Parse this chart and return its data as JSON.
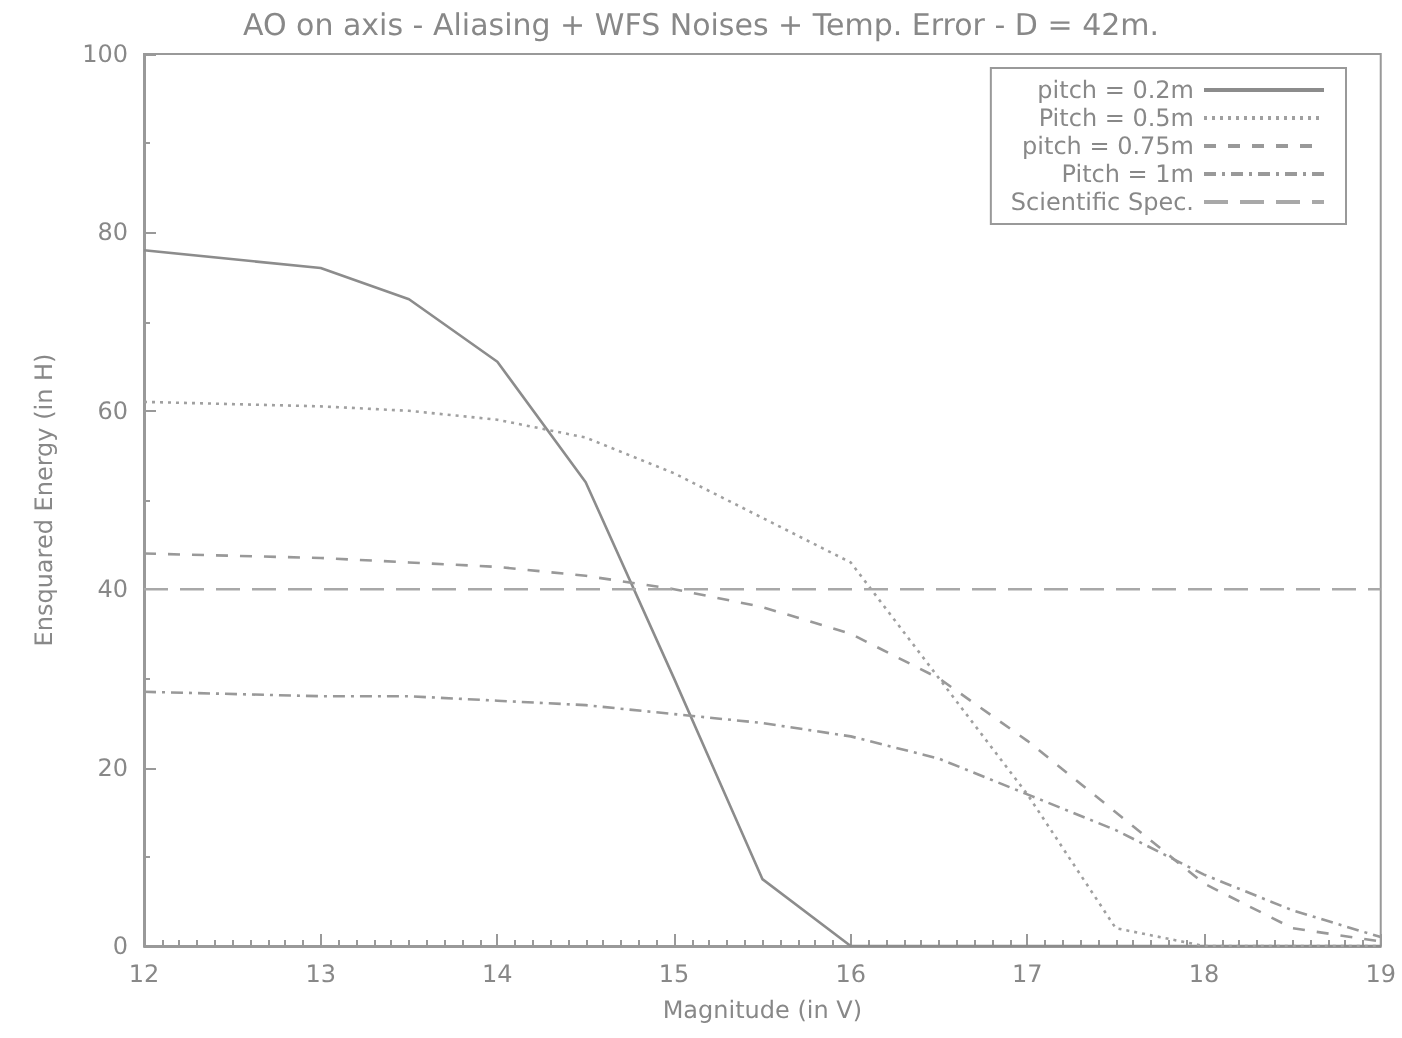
{
  "chart_data": {
    "type": "line",
    "title": "AO on axis - Aliasing + WFS Noises + Temp. Error - D = 42m.",
    "xlabel": "Magnitude (in V)",
    "ylabel": "Ensquared Energy (in H)",
    "x": [
      12,
      13,
      13.5,
      14,
      14.5,
      15,
      15.5,
      16,
      16.5,
      17,
      17.5,
      18,
      18.5,
      19
    ],
    "xlim": [
      12,
      19
    ],
    "xticks": [
      12,
      13,
      14,
      15,
      16,
      17,
      18,
      19
    ],
    "ylim": [
      0,
      100
    ],
    "yticks": [
      0,
      20,
      40,
      60,
      80,
      100
    ],
    "grid": false,
    "legend": "top right",
    "marker": "none",
    "series": [
      {
        "name": "pitch = 0.2m",
        "color": "#8c8c8c",
        "line_style": "solid",
        "values": [
          78,
          76,
          72.5,
          65.5,
          52,
          30,
          7.5,
          0,
          0,
          0,
          0,
          0,
          0,
          0
        ]
      },
      {
        "name": "Pitch = 0.5m",
        "color": "#a0a0a0",
        "line_style": "dotted",
        "values": [
          61,
          60.5,
          60,
          59,
          57,
          53,
          48,
          43,
          30,
          17,
          2,
          0,
          0,
          0
        ]
      },
      {
        "name": "pitch = 0.75m",
        "color": "#999999",
        "line_style": "dashed",
        "values": [
          44,
          43.5,
          43,
          42.5,
          41.5,
          40,
          38,
          35,
          30,
          23,
          15,
          7,
          2,
          0.5
        ]
      },
      {
        "name": "Pitch = 1m",
        "color": "#999999",
        "line_style": "dashdot",
        "values": [
          28.5,
          28,
          28,
          27.5,
          27,
          26,
          25,
          23.5,
          21,
          17,
          13,
          8,
          4,
          1
        ]
      },
      {
        "name": "Scientific Spec.",
        "color": "#a8a8a8",
        "line_style": "longdash",
        "x": [
          12,
          19
        ],
        "values": [
          40,
          40
        ]
      }
    ]
  }
}
